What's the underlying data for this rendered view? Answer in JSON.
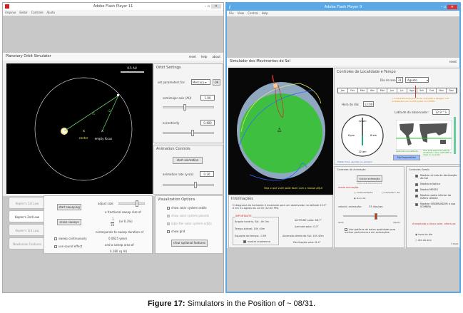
{
  "left_window": {
    "title": "Adobe Flash Player 11",
    "menu": [
      "Arquivo",
      "Exibir",
      "Controle",
      "Ajuda"
    ],
    "app_title": "Planetary Orbit Simulator",
    "header_links": [
      "reset",
      "help",
      "about"
    ],
    "canvas": {
      "scale_label": "0.5 AU",
      "labels": {
        "r1": "r1",
        "r2": "r2",
        "center": "center",
        "empty_focus": "empty focus",
        "x": "x"
      }
    },
    "orbit_settings": {
      "title": "Orbit Settings",
      "set_params_label": "set parameters for:",
      "planet": "Mercury",
      "ok": "OK",
      "semimajor_label": "semimajor axis (AU)",
      "semimajor_value": "1.00",
      "semimajor_slider": 0.4,
      "ecc_label": "eccentricity",
      "ecc_value": "0.400",
      "ecc_slider": 0.55
    },
    "animation": {
      "title": "Animation Controls",
      "start": "start animation",
      "rate_label": "animation rate (yrs/s)",
      "rate_value": "0.20",
      "rate_slider": 0.62
    },
    "tabs": [
      "Kepler's 1st Law",
      "Kepler's 2nd Law",
      "Kepler's 3rd Law",
      "Newtonian Features"
    ],
    "active_tab": 1,
    "kepler2": {
      "start_sweeping": "start sweeping",
      "erase_sweeps": "erase sweeps",
      "sweep_continuously": "sweep continuously",
      "use_sound": "use sound effect",
      "adjust_size": "adjust size:",
      "frac_text": "a fractional sweep size of",
      "num": "1",
      "den": "16",
      "pct": "(or  6.3%)",
      "corresponds": "corresponds to sweep duration of",
      "duration": "0.0625 years",
      "area_text": "and a sweep area of",
      "area": "0.180 sq AU",
      "size_slider": 0.65
    },
    "visualization": {
      "title": "Visualization Options",
      "items": [
        {
          "label": "show solar system orbits",
          "checked": false,
          "disabled": false
        },
        {
          "label": "show solar system planets",
          "checked": false,
          "disabled": true
        },
        {
          "label": "label the solar system orbits",
          "checked": false,
          "disabled": true
        },
        {
          "label": "show grid",
          "checked": false,
          "disabled": false
        }
      ],
      "clear": "clear optional features"
    }
  },
  "right_window": {
    "title": "Adobe Flash Player 9",
    "menu": [
      "File",
      "View",
      "Control",
      "Help"
    ],
    "app_title": "Simulador dos Movimentos do Sol",
    "reset": "reset",
    "sky": {
      "note": "Veja o que você pode fazer com o mouse AQUI"
    },
    "locality": {
      "title": "Controles de Localidade e Tempo",
      "day_label": "Dia do ano:",
      "day": "31",
      "month": "Agosto",
      "months": [
        "Jan",
        "Fev",
        "Mar",
        "Abr",
        "Mai",
        "Jun",
        "Jul",
        "Ago",
        "Set",
        "Out",
        "Nov",
        "Dez"
      ],
      "hour_label": "Hora do dia:",
      "hour": "12:00",
      "note": "+ Crescente enquanto horas dobradas e apagam sua localização sem modificações do DATED.",
      "lat_label": "Latitude do observador:",
      "lat": "12.9 ° S",
      "clock_labels": [
        "12 pm",
        "6 pm",
        "6 am",
        "12 am"
      ],
      "map_note": "Latitude sua latitude",
      "map_note2": "Você pode selecionar latitude arrastando o traço LATITUDE no mapa ou na escala",
      "button": "MyGeoposition",
      "footer": "Mudar hora: apontar no ponteiro"
    },
    "info": {
      "title": "Informações",
      "text": "O diagrama do horizonte é mostrado para um observador na latitude 12.9° S em 31 Agosto às 12:00 (12:00 PM).",
      "important": "IMPORTANTE:",
      "hour_angle": "Ângulo horário, Sol: -0h 0m",
      "sidereal": "Tempo sideral:    10h 40m",
      "eq_time": "Equação do tempo:  -0.09",
      "analemma": "mostre analemma",
      "altitude": "ALTITUDE solar: 68.7°",
      "azimuth": "Azimute solar:  0.0°",
      "ra": "Ascensão direta do Sol: 10h 40m",
      "dec": "Declinação solar: 8.4°"
    },
    "anim": {
      "title": "Controles de Animação",
      "start": "Iniciar animação",
      "hint": "clique nesta área para parar",
      "mode_label": "modo animação:",
      "modes": [
        "continuamente",
        "somente 1 dia",
        "dia a dia"
      ],
      "speed_label": "velocid. animação:",
      "speed": "33 dias/sec",
      "speed_slider": 0.58,
      "slow": "lento",
      "fast": "rápido",
      "low_gfx": "Use gráficos de baixa qualidade para melhor performance em animações."
    },
    "general": {
      "title": "Controles Gerais",
      "items": [
        "Mostrar círculo de declinação do Sol",
        "Mostra eclíptica",
        "Mostra MESES",
        "Mostrar parte inferior da esfera celeste",
        "Mostrar OBSERVADOR e sua SOMBRA"
      ],
      "drag_label": "Arrastando o disco solar, altera-se:",
      "options": [
        "hora do dia",
        "dia do ano"
      ],
      "credit": "© NAAP"
    }
  },
  "caption": {
    "label": "Figure 17:",
    "text": " Simulators in the Position of ~ 08/31."
  }
}
